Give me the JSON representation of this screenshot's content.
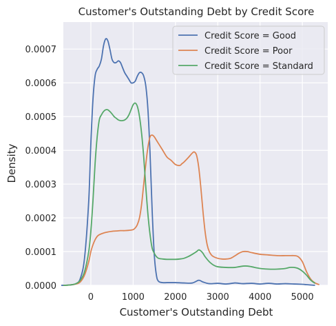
{
  "chart_data": {
    "type": "line",
    "title": "Customer's Outstanding Debt by Credit Score",
    "xlabel": "Customer's Outstanding Debt",
    "ylabel": "Density",
    "xlim": [
      -650,
      5600
    ],
    "ylim": [
      0,
      0.00078
    ],
    "xticks": [
      0,
      1000,
      2000,
      3000,
      4000,
      5000
    ],
    "xtick_labels": [
      "0",
      "1000",
      "2000",
      "3000",
      "4000",
      "5000"
    ],
    "yticks": [
      0,
      0.0001,
      0.0002,
      0.0003,
      0.0004,
      0.0005,
      0.0006,
      0.0007
    ],
    "ytick_labels": [
      "0.0000",
      "0.0001",
      "0.0002",
      "0.0003",
      "0.0004",
      "0.0005",
      "0.0006",
      "0.0007"
    ],
    "grid": true,
    "legend_position": "top-right",
    "series": [
      {
        "name": "Credit Score = Good",
        "color": "#4c72b0",
        "x": [
          -700,
          -500,
          -350,
          -250,
          -150,
          -50,
          0,
          50,
          100,
          150,
          200,
          250,
          300,
          350,
          400,
          450,
          500,
          550,
          600,
          650,
          700,
          750,
          800,
          850,
          900,
          950,
          1000,
          1050,
          1100,
          1150,
          1200,
          1250,
          1300,
          1350,
          1400,
          1450,
          1500,
          1550,
          1600,
          1700,
          1800,
          2000,
          2200,
          2400,
          2550,
          2650,
          2800,
          3000,
          3200,
          3400,
          3500,
          3600,
          3800,
          4000,
          4200,
          4400,
          4600,
          4800,
          5000,
          5100,
          5300
        ],
        "y": [
          0,
          1e-06,
          5e-06,
          2e-05,
          8e-05,
          0.00025,
          0.00042,
          0.00055,
          0.00062,
          0.00064,
          0.00065,
          0.00067,
          0.00071,
          0.00073,
          0.000725,
          0.0007,
          0.00067,
          0.00066,
          0.00066,
          0.000665,
          0.00066,
          0.000645,
          0.00063,
          0.00062,
          0.00061,
          0.0006,
          0.0006,
          0.000605,
          0.00062,
          0.00063,
          0.00063,
          0.00062,
          0.00059,
          0.00052,
          0.00039,
          0.00022,
          9e-05,
          3e-05,
          1.2e-05,
          8e-06,
          8e-06,
          8e-06,
          7e-06,
          7e-06,
          1.5e-05,
          1e-05,
          5e-06,
          6e-06,
          4e-06,
          7e-06,
          6e-06,
          5e-06,
          6e-06,
          4e-06,
          6e-06,
          4e-06,
          5e-06,
          4e-06,
          3e-06,
          2e-06,
          0
        ]
      },
      {
        "name": "Credit Score = Poor",
        "color": "#dd8452",
        "x": [
          -650,
          -500,
          -350,
          -250,
          -150,
          -50,
          0,
          50,
          100,
          150,
          200,
          300,
          400,
          500,
          600,
          700,
          800,
          900,
          1000,
          1050,
          1100,
          1150,
          1200,
          1250,
          1300,
          1350,
          1400,
          1450,
          1500,
          1550,
          1600,
          1700,
          1800,
          1900,
          2000,
          2100,
          2150,
          2200,
          2300,
          2400,
          2450,
          2500,
          2550,
          2600,
          2650,
          2700,
          2750,
          2800,
          2850,
          2900,
          3000,
          3100,
          3200,
          3300,
          3400,
          3500,
          3600,
          3700,
          3800,
          4000,
          4200,
          4400,
          4600,
          4700,
          4800,
          4900,
          5000,
          5100,
          5200,
          5300,
          5400
        ],
        "y": [
          0,
          1e-06,
          4e-06,
          1e-05,
          3e-05,
          7e-05,
          0.0001,
          0.00012,
          0.000135,
          0.000145,
          0.00015,
          0.000155,
          0.000158,
          0.00016,
          0.000161,
          0.000162,
          0.000162,
          0.000163,
          0.000165,
          0.00017,
          0.00018,
          0.0002,
          0.00024,
          0.0003,
          0.00036,
          0.00041,
          0.00044,
          0.000445,
          0.00044,
          0.00043,
          0.00042,
          0.0004,
          0.00038,
          0.00037,
          0.000358,
          0.000355,
          0.00036,
          0.000365,
          0.000378,
          0.000392,
          0.000395,
          0.000385,
          0.00035,
          0.00029,
          0.00022,
          0.00016,
          0.00012,
          0.0001,
          9e-05,
          8.5e-05,
          8e-05,
          7.8e-05,
          7.8e-05,
          8e-05,
          8.7e-05,
          9.5e-05,
          0.0001,
          0.0001,
          9.7e-05,
          9.2e-05,
          9e-05,
          8.8e-05,
          8.8e-05,
          8.8e-05,
          8.8e-05,
          8.5e-05,
          7e-05,
          4e-05,
          1.8e-05,
          7e-06,
          2e-06
        ]
      },
      {
        "name": "Credit Score = Standard",
        "color": "#55a868",
        "x": [
          -650,
          -500,
          -350,
          -250,
          -150,
          -50,
          0,
          50,
          100,
          150,
          200,
          250,
          300,
          350,
          400,
          450,
          500,
          550,
          600,
          650,
          700,
          750,
          800,
          850,
          900,
          950,
          1000,
          1050,
          1100,
          1150,
          1200,
          1250,
          1300,
          1350,
          1400,
          1450,
          1500,
          1550,
          1600,
          1700,
          1800,
          1900,
          2000,
          2100,
          2200,
          2300,
          2400,
          2500,
          2550,
          2600,
          2650,
          2700,
          2800,
          2900,
          3000,
          3200,
          3400,
          3500,
          3600,
          3700,
          3800,
          4000,
          4200,
          4400,
          4600,
          4700,
          4800,
          4900,
          5000,
          5100,
          5200,
          5300
        ],
        "y": [
          0,
          1e-06,
          5e-06,
          1.5e-05,
          4e-05,
          0.0001,
          0.00016,
          0.00025,
          0.00036,
          0.00044,
          0.00049,
          0.000505,
          0.000515,
          0.00052,
          0.00052,
          0.000515,
          0.000508,
          0.0005,
          0.000495,
          0.00049,
          0.000488,
          0.000488,
          0.00049,
          0.000495,
          0.000505,
          0.00052,
          0.000535,
          0.00054,
          0.00053,
          0.0005,
          0.00045,
          0.00038,
          0.00029,
          0.00021,
          0.00015,
          0.00011,
          9.5e-05,
          8.5e-05,
          8e-05,
          7.8e-05,
          7.7e-05,
          7.7e-05,
          7.7e-05,
          7.8e-05,
          8e-05,
          8.5e-05,
          9.2e-05,
          0.0001,
          0.000105,
          0.000102,
          9.5e-05,
          8.5e-05,
          7e-05,
          6e-05,
          5.5e-05,
          5.3e-05,
          5.3e-05,
          5.5e-05,
          5.7e-05,
          5.7e-05,
          5.5e-05,
          5e-05,
          4.8e-05,
          4.8e-05,
          5e-05,
          5.3e-05,
          5.3e-05,
          5e-05,
          4.2e-05,
          3e-05,
          1.5e-05,
          6e-06
        ]
      }
    ]
  }
}
